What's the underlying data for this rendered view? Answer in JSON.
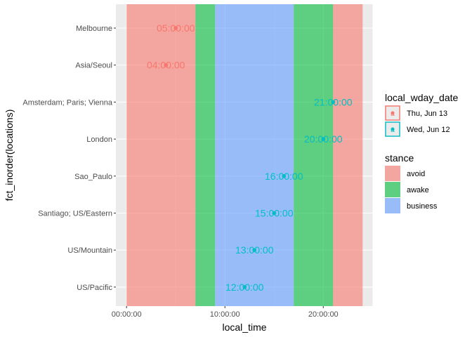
{
  "chart_data": {
    "type": "timeline",
    "xlabel": "local_time",
    "ylabel": "fct_inorder(locations)",
    "xlim": [
      "-01:05:00",
      "25:03:00"
    ],
    "x_ticks": [
      "00:00:00",
      "10:00:00",
      "20:00:00"
    ],
    "x_tick_values_hours": [
      0,
      10,
      20
    ],
    "categories": [
      "Melbourne",
      "Asia/Seoul",
      "Amsterdam; Paris; Vienna",
      "London",
      "Sao_Paulo",
      "Santiago; US/Eastern",
      "US/Mountain",
      "US/Pacific"
    ],
    "stance_bands": [
      {
        "stance": "avoid",
        "start_hour": 0,
        "end_hour": 7
      },
      {
        "stance": "awake",
        "start_hour": 7,
        "end_hour": 9
      },
      {
        "stance": "business",
        "start_hour": 9,
        "end_hour": 17
      },
      {
        "stance": "awake",
        "start_hour": 17,
        "end_hour": 21
      },
      {
        "stance": "avoid",
        "start_hour": 21,
        "end_hour": 24
      }
    ],
    "points": [
      {
        "location": "Melbourne",
        "hour": 5,
        "label": "05:00:00",
        "local_wday_date": "Thu, Jun 13"
      },
      {
        "location": "Asia/Seoul",
        "hour": 4,
        "label": "04:00:00",
        "local_wday_date": "Thu, Jun 13"
      },
      {
        "location": "Amsterdam; Paris; Vienna",
        "hour": 21,
        "label": "21:00:00",
        "local_wday_date": "Wed, Jun 12"
      },
      {
        "location": "London",
        "hour": 20,
        "label": "20:00:00",
        "local_wday_date": "Wed, Jun 12"
      },
      {
        "location": "Sao_Paulo",
        "hour": 16,
        "label": "16:00:00",
        "local_wday_date": "Wed, Jun 12"
      },
      {
        "location": "Santiago; US/Eastern",
        "hour": 15,
        "label": "15:00:00",
        "local_wday_date": "Wed, Jun 12"
      },
      {
        "location": "US/Mountain",
        "hour": 13,
        "label": "13:00:00",
        "local_wday_date": "Wed, Jun 12"
      },
      {
        "location": "US/Pacific",
        "hour": 12,
        "label": "12:00:00",
        "local_wday_date": "Wed, Jun 12"
      }
    ],
    "legends": [
      {
        "title": "local_wday_date",
        "items": [
          {
            "label": "Thu, Jun 13",
            "color": "#F8766D"
          },
          {
            "label": "Wed, Jun 12",
            "color": "#00BFC4"
          }
        ]
      },
      {
        "title": "stance",
        "items": [
          {
            "label": "avoid",
            "color": "#F8766D"
          },
          {
            "label": "awake",
            "color": "#00BA38"
          },
          {
            "label": "business",
            "color": "#619CFF"
          }
        ]
      }
    ],
    "legend_position": "right",
    "grid": true,
    "colors": {
      "panel_bg": "#EBEBEB",
      "grid": "#FFFFFF",
      "band_alpha": 0.6
    }
  }
}
